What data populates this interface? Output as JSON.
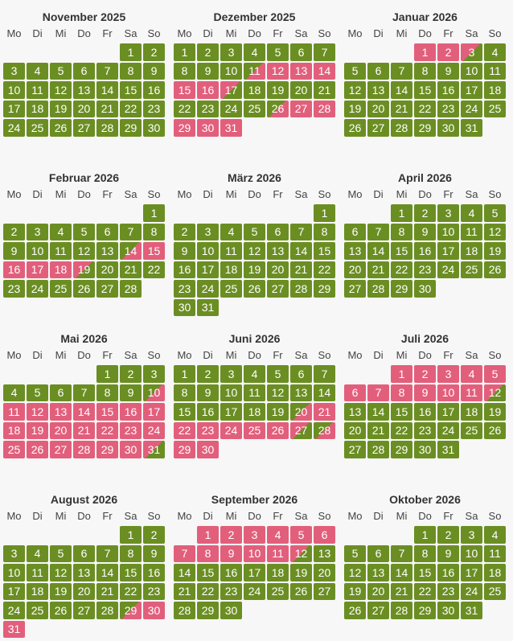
{
  "weekdays": [
    "Mo",
    "Di",
    "Mi",
    "Do",
    "Fr",
    "Sa",
    "So"
  ],
  "colors": {
    "available": "#6b8e23",
    "booked": "#e25f7c",
    "background": "#f7f7f7"
  },
  "months": [
    {
      "title": "November 2025",
      "offset": 5,
      "days": 30,
      "booked": [],
      "arrival": [],
      "departure": []
    },
    {
      "title": "Dezember 2025",
      "offset": 0,
      "days": 31,
      "booked": [
        12,
        13,
        14,
        15,
        16,
        27,
        28,
        29,
        30,
        31
      ],
      "arrival": [
        11,
        26
      ],
      "departure": [
        17
      ]
    },
    {
      "title": "Januar 2026",
      "offset": 3,
      "days": 31,
      "booked": [
        1,
        2
      ],
      "arrival": [],
      "departure": [
        3
      ]
    },
    {
      "title": "Februar 2026",
      "offset": 6,
      "days": 28,
      "booked": [
        15,
        16,
        17,
        18
      ],
      "arrival": [
        14
      ],
      "departure": [
        19
      ]
    },
    {
      "title": "März 2026",
      "offset": 6,
      "days": 31,
      "booked": [],
      "arrival": [],
      "departure": []
    },
    {
      "title": "April 2026",
      "offset": 2,
      "days": 30,
      "booked": [],
      "arrival": [],
      "departure": []
    },
    {
      "title": "Mai 2026",
      "offset": 4,
      "days": 31,
      "booked": [
        11,
        12,
        13,
        14,
        15,
        16,
        17,
        18,
        19,
        20,
        21,
        22,
        23,
        24,
        25,
        26,
        27,
        28,
        29,
        30
      ],
      "arrival": [
        10
      ],
      "departure": [
        31
      ]
    },
    {
      "title": "Juni 2026",
      "offset": 0,
      "days": 30,
      "booked": [
        21,
        22,
        23,
        24,
        25,
        26,
        29,
        30
      ],
      "arrival": [
        20,
        28
      ],
      "departure": [
        27
      ]
    },
    {
      "title": "Juli 2026",
      "offset": 2,
      "days": 31,
      "booked": [
        1,
        2,
        3,
        4,
        5,
        6,
        7,
        8,
        9,
        10,
        11
      ],
      "arrival": [],
      "departure": [
        12
      ]
    },
    {
      "title": "August 2026",
      "offset": 5,
      "days": 31,
      "booked": [
        30,
        31
      ],
      "arrival": [
        29
      ],
      "departure": []
    },
    {
      "title": "September 2026",
      "offset": 1,
      "days": 30,
      "booked": [
        1,
        2,
        3,
        4,
        5,
        6,
        7,
        8,
        9,
        10,
        11
      ],
      "arrival": [],
      "departure": [
        12
      ]
    },
    {
      "title": "Oktober 2026",
      "offset": 3,
      "days": 31,
      "booked": [],
      "arrival": [],
      "departure": []
    }
  ]
}
